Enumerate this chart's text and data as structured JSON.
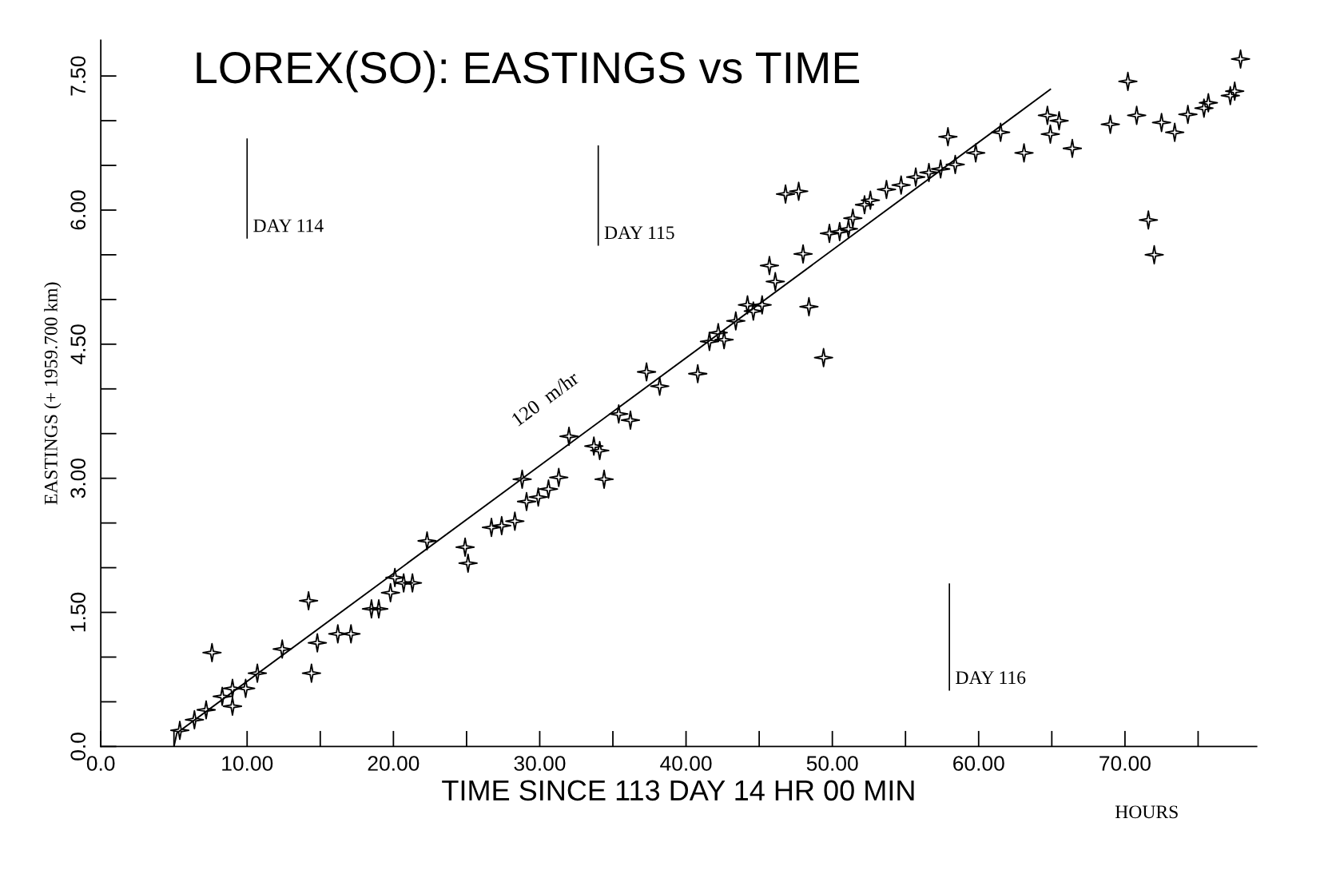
{
  "chart_data": {
    "type": "scatter",
    "title": "LOREX(SO): EASTINGS vs TIME",
    "xlabel": "TIME SINCE 113 DAY 14 HR 00 MIN",
    "ylabel": "EASTINGS (+ 1959.700 km)",
    "annotations": [
      "120  m/hr",
      "HOURS"
    ],
    "grid": false,
    "legend": false,
    "xlim": [
      0,
      79
    ],
    "ylim": [
      0,
      7.9
    ],
    "xticks": [
      {
        "value": 0,
        "label": "0.0"
      },
      {
        "value": 10,
        "label": "10.00"
      },
      {
        "value": 20,
        "label": "20.00"
      },
      {
        "value": 30,
        "label": "30.00"
      },
      {
        "value": 40,
        "label": "40.00"
      },
      {
        "value": 50,
        "label": "50.00"
      },
      {
        "value": 60,
        "label": "60.00"
      },
      {
        "value": 70,
        "label": "70.00"
      }
    ],
    "yticks": [
      {
        "value": 0,
        "label": "0.0"
      },
      {
        "value": 1.5,
        "label": "1.50"
      },
      {
        "value": 3,
        "label": "3.00"
      },
      {
        "value": 4.5,
        "label": "4.50"
      },
      {
        "value": 6,
        "label": "6.00"
      },
      {
        "value": 7.5,
        "label": "7.50"
      }
    ],
    "ref_lines": [
      {
        "axis": "x",
        "value": 10,
        "label": "DAY 114"
      },
      {
        "axis": "x",
        "value": 34,
        "label": "DAY 115"
      },
      {
        "axis": "x",
        "value": 58,
        "label": "DAY 116"
      }
    ],
    "series": [
      {
        "marker": "star",
        "color": "#000000",
        "x": [
          5.4,
          6.4,
          7.2,
          7.6,
          8.3,
          9.0,
          9.0,
          9.9,
          10.7,
          12.4,
          14.2,
          14.4,
          14.8,
          16.2,
          17.1,
          18.5,
          19.0,
          19.8,
          20.1,
          20.7,
          21.3,
          22.3,
          24.9,
          25.1,
          26.7,
          27.4,
          28.3,
          28.8,
          29.1,
          29.9,
          30.6,
          31.3,
          32.0,
          33.7,
          34.1,
          34.4,
          35.4,
          36.2,
          37.3,
          38.2,
          40.8,
          41.6,
          42.2,
          42.6,
          43.4,
          44.2,
          44.6,
          45.2,
          45.7,
          46.1,
          46.8,
          47.7,
          48.0,
          48.4,
          49.4,
          49.8,
          50.5,
          51.1,
          51.4,
          52.2,
          52.6,
          53.7,
          54.7,
          55.7,
          56.6,
          57.4,
          57.9,
          58.4,
          59.8,
          61.5,
          63.1,
          64.7,
          64.9,
          65.5,
          66.4,
          69.0,
          70.2,
          70.8,
          71.6,
          72.0,
          72.5,
          73.4,
          74.3,
          75.4,
          75.7,
          77.2,
          77.5,
          77.9
        ],
        "values": [
          0.18,
          0.3,
          0.41,
          1.05,
          0.56,
          0.65,
          0.45,
          0.65,
          0.82,
          1.09,
          1.63,
          0.82,
          1.16,
          1.26,
          1.26,
          1.54,
          1.54,
          1.72,
          1.89,
          1.83,
          1.83,
          2.3,
          2.23,
          2.05,
          2.45,
          2.47,
          2.52,
          2.99,
          2.74,
          2.79,
          2.88,
          3.01,
          3.47,
          3.36,
          3.31,
          2.99,
          3.72,
          3.65,
          4.19,
          4.03,
          4.17,
          4.53,
          4.63,
          4.55,
          4.76,
          4.94,
          4.87,
          4.94,
          5.38,
          5.2,
          6.18,
          6.21,
          5.51,
          4.92,
          4.35,
          5.74,
          5.76,
          5.79,
          5.91,
          6.06,
          6.11,
          6.23,
          6.28,
          6.37,
          6.42,
          6.46,
          6.82,
          6.51,
          6.64,
          6.87,
          6.64,
          7.06,
          6.85,
          7.0,
          6.69,
          6.96,
          7.44,
          7.06,
          5.89,
          5.5,
          6.98,
          6.87,
          7.07,
          7.14,
          7.2,
          7.28,
          7.33,
          7.69
        ]
      },
      {
        "type": "line",
        "color": "#000000",
        "x": [
          5.0,
          5.2,
          64.9
        ],
        "values": [
          0.0,
          0.15,
          7.35
        ]
      }
    ]
  }
}
